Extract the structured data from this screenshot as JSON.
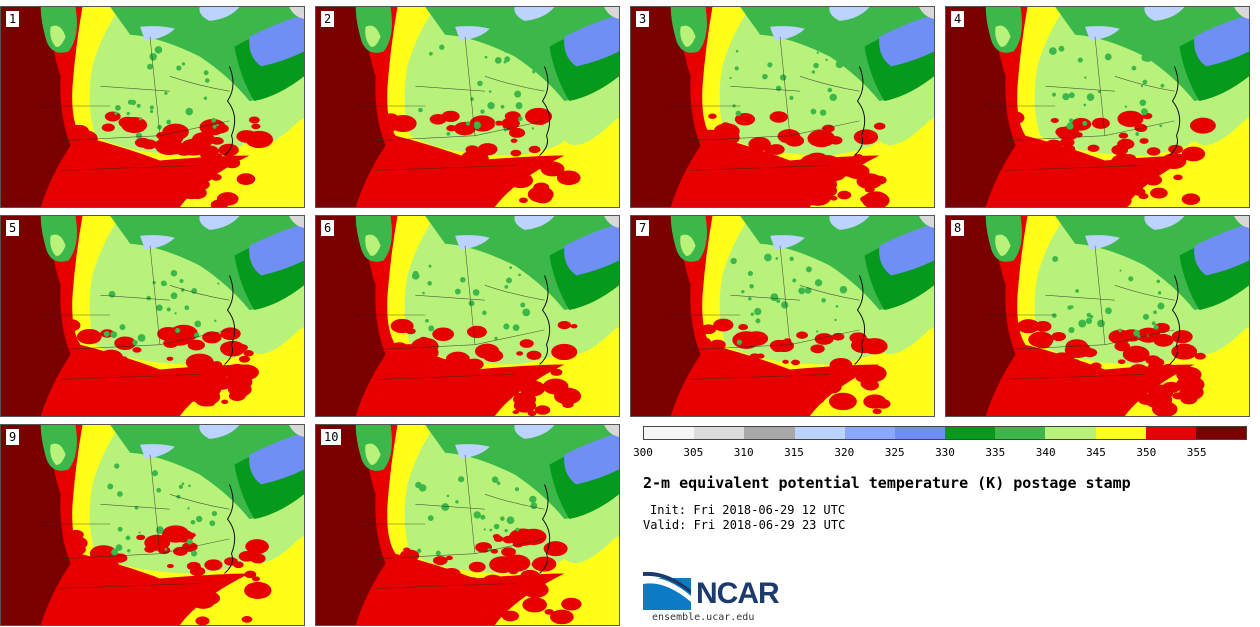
{
  "stamps": [
    {
      "label": "1"
    },
    {
      "label": "2"
    },
    {
      "label": "3"
    },
    {
      "label": "4"
    },
    {
      "label": "5"
    },
    {
      "label": "6"
    },
    {
      "label": "7"
    },
    {
      "label": "8"
    },
    {
      "label": "9"
    },
    {
      "label": "10"
    }
  ],
  "colorbar": {
    "ticks": [
      "300",
      "305",
      "310",
      "315",
      "320",
      "325",
      "330",
      "335",
      "340",
      "345",
      "350",
      "355"
    ],
    "colors": [
      "#f5f5f5",
      "#dcdcdc",
      "#a8a8a8",
      "#bcd2ff",
      "#8aa8ff",
      "#6f8ff5",
      "#059a1c",
      "#3cb84a",
      "#b8f27a",
      "#ffff1a",
      "#e60000",
      "#7a0000"
    ]
  },
  "title": "2-m equivalent potential temperature (K) postage stamp",
  "init": "Init: Fri 2018-06-29 12 UTC",
  "valid": "Valid: Fri 2018-06-29 23 UTC",
  "logo": {
    "name": "NCAR",
    "site": "ensemble.ucar.edu"
  },
  "palette": {
    "darkred": "#7a0000",
    "red": "#e60000",
    "yellow": "#ffff1a",
    "lightgreen": "#b8f27a",
    "midgreen": "#3cb84a",
    "green": "#059a1c",
    "blue": "#6f8ff5",
    "lightblue": "#bcd2ff"
  }
}
